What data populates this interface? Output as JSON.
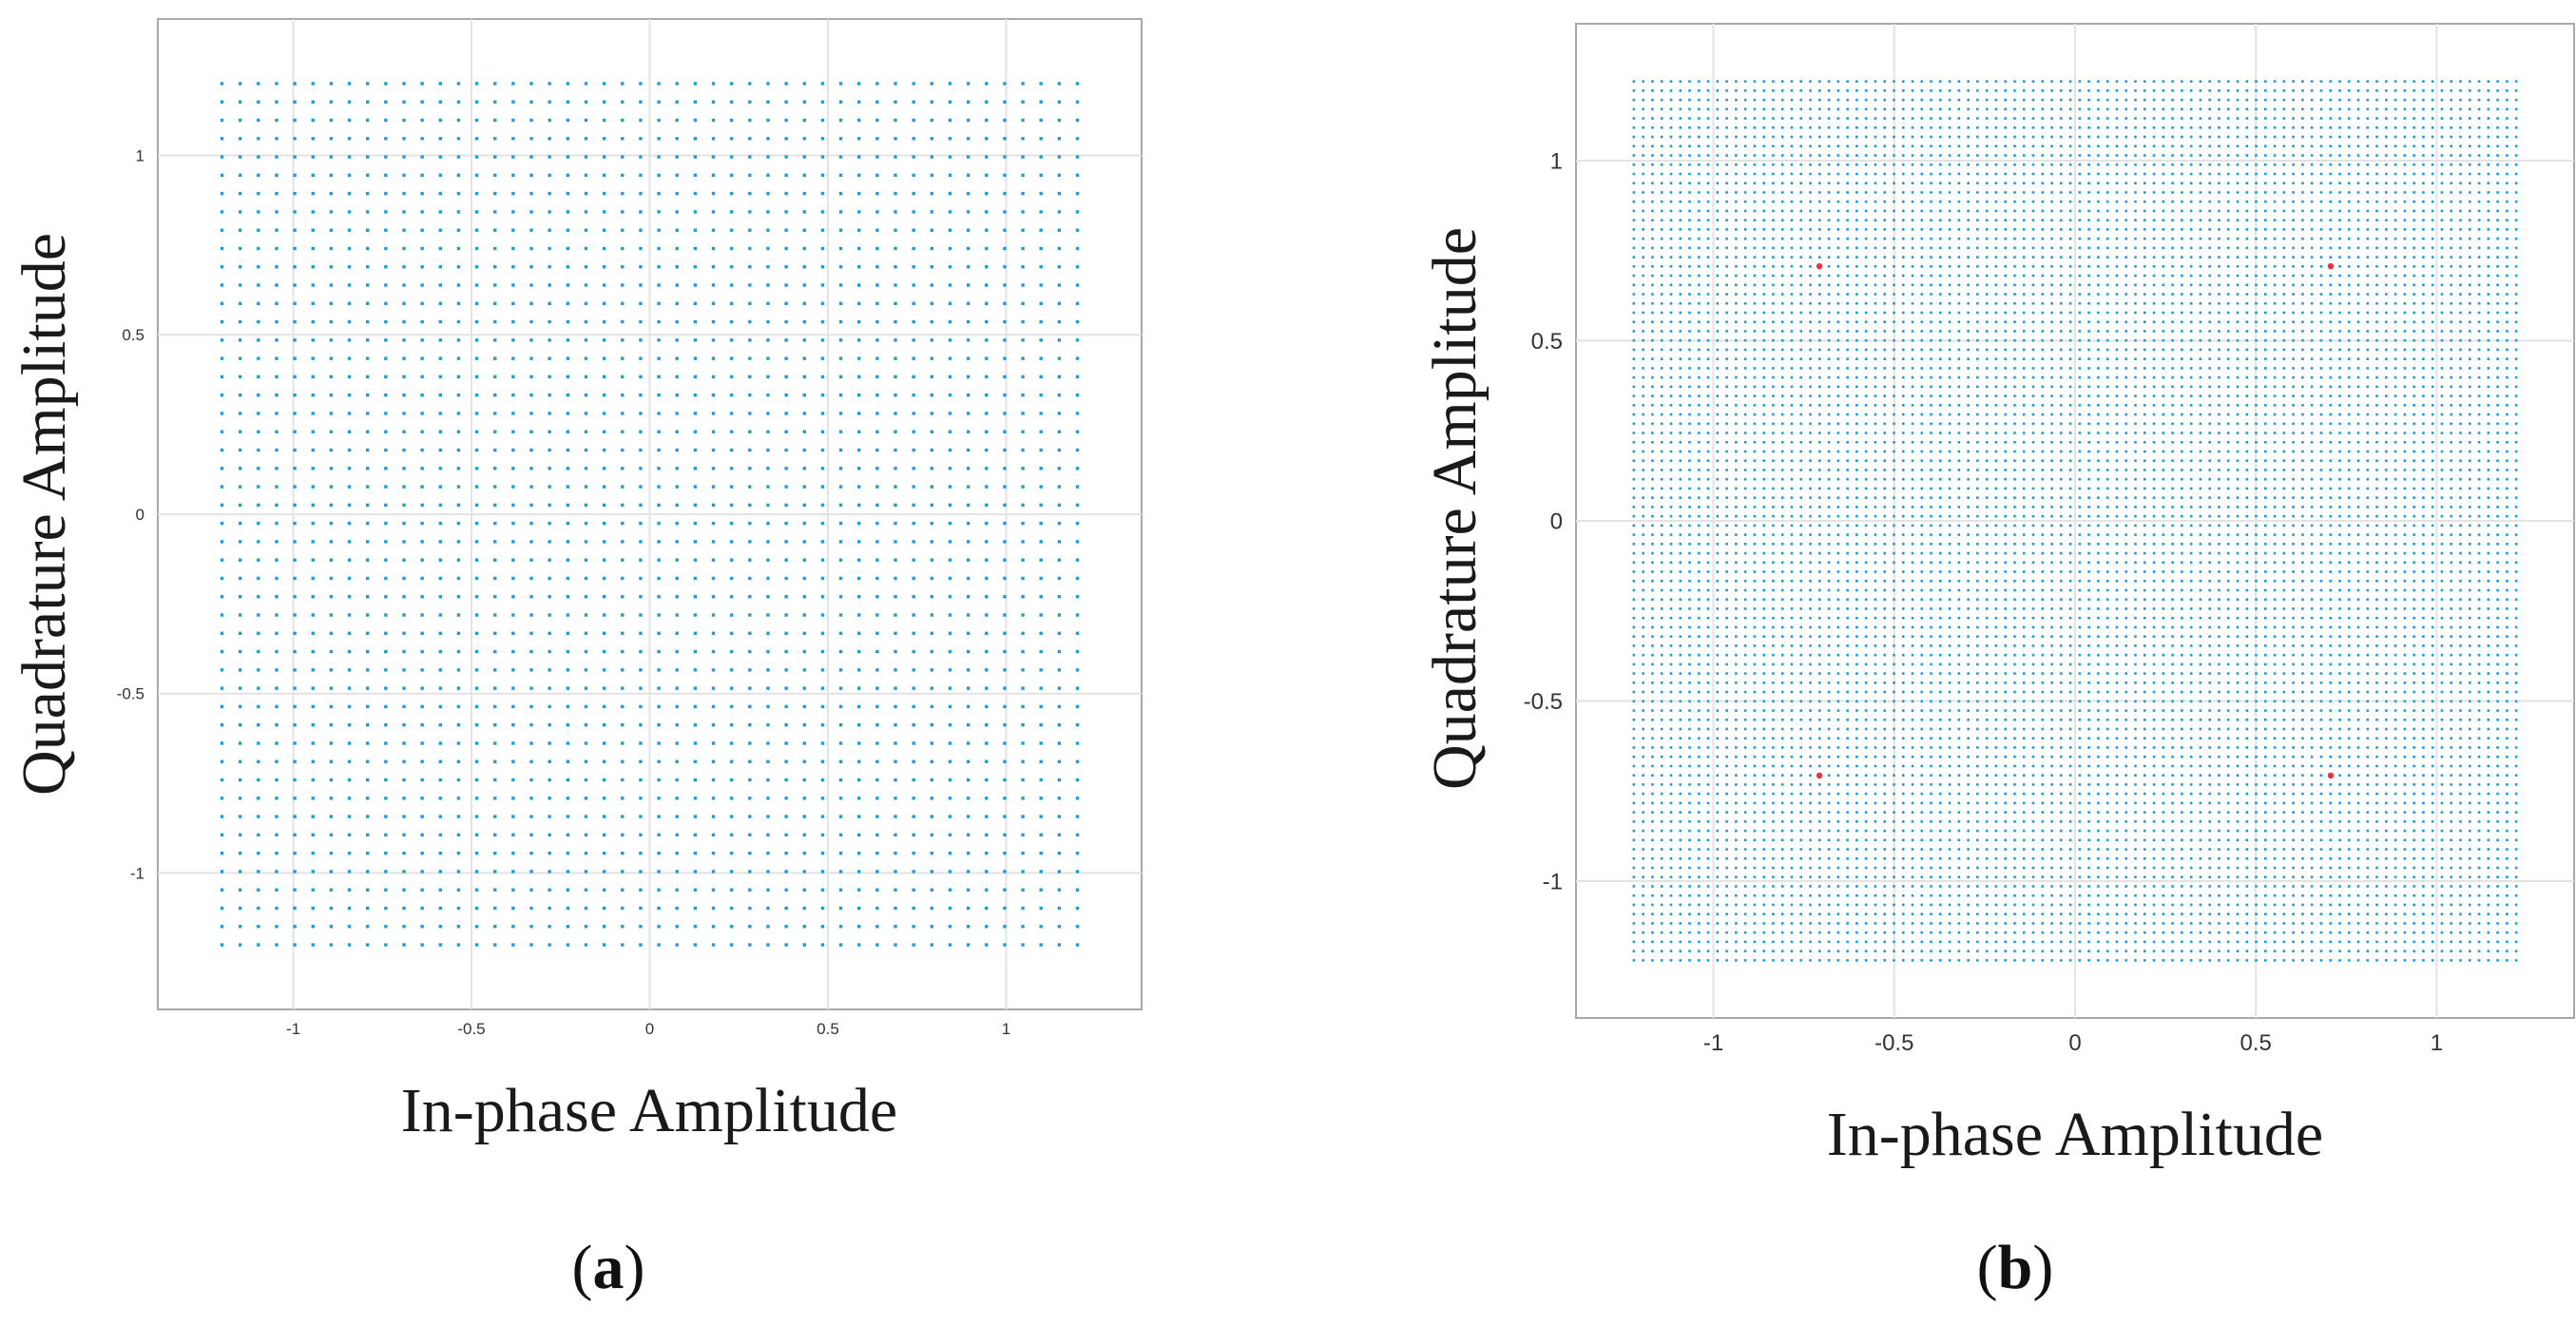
{
  "chart_data": [
    {
      "type": "scatter",
      "panel_label": "a",
      "xlabel": "In-phase Amplitude",
      "ylabel": "Quadrature Amplitude",
      "xlim": [
        -1.38,
        1.38
      ],
      "ylim": [
        -1.38,
        1.38
      ],
      "x_ticks": [
        "-1",
        "-0.5",
        "0",
        "0.5",
        "1"
      ],
      "y_ticks": [
        "1",
        "0.5",
        "0",
        "-0.5",
        "-1"
      ],
      "grid": true,
      "series": [
        {
          "color": "#1f9bd6",
          "grid_points": {
            "min": -1.2,
            "max": 1.2,
            "count": 48
          }
        }
      ]
    },
    {
      "type": "scatter",
      "panel_label": "b",
      "xlabel": "In-phase Amplitude",
      "ylabel": "Quadrature Amplitude",
      "xlim": [
        -1.38,
        1.38
      ],
      "ylim": [
        -1.38,
        1.38
      ],
      "x_ticks": [
        "-1",
        "-0.5",
        "0",
        "0.5",
        "1"
      ],
      "y_ticks": [
        "1",
        "0.5",
        "0",
        "-0.5",
        "-1"
      ],
      "grid": true,
      "series": [
        {
          "color": "#1f9bd6",
          "grid_points": {
            "min": -1.22,
            "max": 1.22,
            "count": 96
          }
        },
        {
          "color": "#e8343a",
          "points": [
            [
              -0.707,
              0.707
            ],
            [
              0.707,
              0.707
            ],
            [
              -0.707,
              -0.707
            ],
            [
              0.707,
              -0.707
            ]
          ]
        }
      ]
    }
  ]
}
